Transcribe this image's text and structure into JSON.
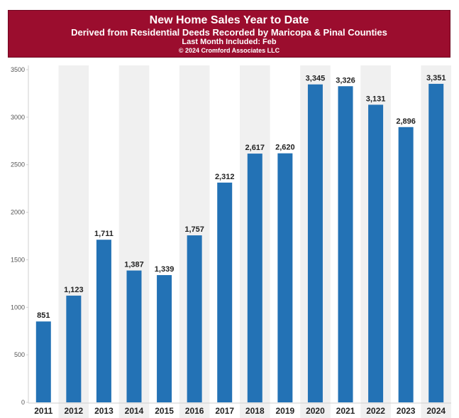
{
  "header": {
    "title": "New Home Sales Year to Date",
    "subtitle": "Derived from Residential Deeds Recorded by Maricopa & Pinal Counties",
    "last_month": "Last Month Included: Feb",
    "copyright": "© 2024 Cromford Associates LLC"
  },
  "colors": {
    "header_bg": "#9b0d2e",
    "bar": "#2372b5",
    "alt_band": "#f0f0f0"
  },
  "chart_data": {
    "type": "bar",
    "title": "New Home Sales Year to Date",
    "subtitle": "Derived from Residential Deeds Recorded by Maricopa & Pinal Counties",
    "categories": [
      "2011",
      "2012",
      "2013",
      "2014",
      "2015",
      "2016",
      "2017",
      "2018",
      "2019",
      "2020",
      "2021",
      "2022",
      "2023",
      "2024"
    ],
    "values": [
      851,
      1123,
      1711,
      1387,
      1339,
      1757,
      2312,
      2617,
      2620,
      3345,
      3326,
      3131,
      2896,
      3351
    ],
    "value_labels": [
      "851",
      "1,123",
      "1,711",
      "1,387",
      "1,339",
      "1,757",
      "2,312",
      "2,617",
      "2,620",
      "3,345",
      "3,326",
      "3,131",
      "2,896",
      "3,351"
    ],
    "yticks": [
      0,
      500,
      1000,
      1500,
      2000,
      2500,
      3000,
      3500
    ],
    "ylim": [
      0,
      3500
    ],
    "xlabel": "",
    "ylabel": "",
    "grid": false,
    "legend": "none"
  }
}
